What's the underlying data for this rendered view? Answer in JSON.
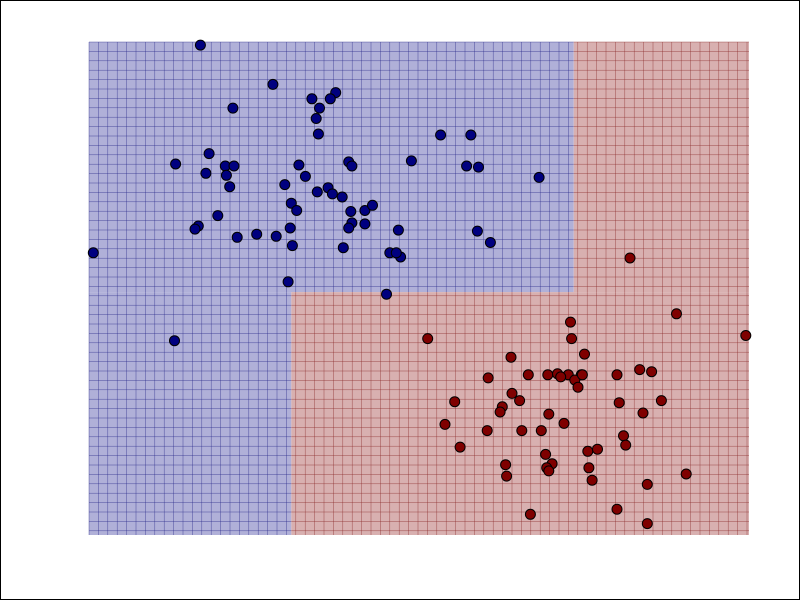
{
  "chart_data": {
    "type": "scatter",
    "xlim": [
      -3.1,
      3.0
    ],
    "ylim": [
      -2.85,
      1.92
    ],
    "grid": true,
    "axes_visible": false,
    "regions": [
      {
        "class": 0,
        "color": "#b0b0d8",
        "grid_color": "#2a2a8a",
        "x": [
          -3.1,
          1.38
        ],
        "y": [
          -0.5,
          1.92
        ]
      },
      {
        "class": 0,
        "color": "#b0b0d8",
        "grid_color": "#2a2a8a",
        "x": [
          -3.1,
          -1.23
        ],
        "y": [
          -2.85,
          -0.5
        ]
      },
      {
        "class": 1,
        "color": "#d8b0b0",
        "grid_color": "#8a2a2a",
        "x": [
          1.38,
          3.0
        ],
        "y": [
          -0.5,
          1.92
        ]
      },
      {
        "class": 1,
        "color": "#d8b0b0",
        "grid_color": "#8a2a2a",
        "x": [
          -1.23,
          3.0
        ],
        "y": [
          -2.85,
          -0.5
        ]
      }
    ],
    "series": [
      {
        "class": 0,
        "color": "#00007f",
        "points": [
          [
            -2.07,
            1.89
          ],
          [
            -1.4,
            1.51
          ],
          [
            -0.97,
            1.28
          ],
          [
            -1.77,
            1.28
          ],
          [
            -0.82,
            1.43
          ],
          [
            -0.87,
            1.37
          ],
          [
            -1.04,
            1.37
          ],
          [
            -1.0,
            1.18
          ],
          [
            -0.98,
            1.03
          ],
          [
            0.15,
            1.02
          ],
          [
            0.43,
            1.02
          ],
          [
            -1.99,
            0.84
          ],
          [
            -2.3,
            0.74
          ],
          [
            -2.02,
            0.65
          ],
          [
            -1.84,
            0.72
          ],
          [
            -1.76,
            0.72
          ],
          [
            -1.83,
            0.63
          ],
          [
            -1.8,
            0.52
          ],
          [
            -1.16,
            0.73
          ],
          [
            -0.7,
            0.76
          ],
          [
            -0.67,
            0.72
          ],
          [
            -0.12,
            0.77
          ],
          [
            0.39,
            0.72
          ],
          [
            0.5,
            0.71
          ],
          [
            -1.29,
            0.54
          ],
          [
            -1.1,
            0.62
          ],
          [
            -1.23,
            0.36
          ],
          [
            -1.18,
            0.29
          ],
          [
            -0.99,
            0.47
          ],
          [
            -0.89,
            0.51
          ],
          [
            -0.85,
            0.45
          ],
          [
            -0.76,
            0.42
          ],
          [
            -0.68,
            0.28
          ],
          [
            -0.67,
            0.17
          ],
          [
            -0.7,
            0.12
          ],
          [
            -0.55,
            0.29
          ],
          [
            -0.55,
            0.16
          ],
          [
            -1.91,
            0.24
          ],
          [
            -2.09,
            0.14
          ],
          [
            -2.12,
            0.11
          ],
          [
            -1.73,
            0.03
          ],
          [
            -1.55,
            0.06
          ],
          [
            -1.24,
            0.12
          ],
          [
            -1.37,
            0.04
          ],
          [
            -1.22,
            -0.05
          ],
          [
            -0.75,
            -0.07
          ],
          [
            -0.24,
            0.1
          ],
          [
            0.49,
            0.09
          ],
          [
            0.61,
            -0.02
          ],
          [
            -0.22,
            -0.16
          ],
          [
            -0.32,
            -0.12
          ],
          [
            1.06,
            0.61
          ],
          [
            -3.06,
            -0.12
          ],
          [
            -1.26,
            -0.4
          ],
          [
            -0.48,
            0.34
          ],
          [
            -0.26,
            -0.12
          ],
          [
            -0.35,
            -0.52
          ],
          [
            -2.31,
            -0.97
          ]
        ]
      },
      {
        "class": 1,
        "color": "#7f0000",
        "points": [
          [
            1.9,
            -0.17
          ],
          [
            2.33,
            -0.71
          ],
          [
            2.97,
            -0.92
          ],
          [
            1.35,
            -0.79
          ],
          [
            1.36,
            -0.95
          ],
          [
            1.48,
            -1.1
          ],
          [
            0.03,
            -0.95
          ],
          [
            0.8,
            -1.13
          ],
          [
            0.96,
            -1.3
          ],
          [
            1.14,
            -1.3
          ],
          [
            1.23,
            -1.29
          ],
          [
            1.33,
            -1.3
          ],
          [
            1.45,
            -1.3
          ],
          [
            1.26,
            -1.32
          ],
          [
            1.39,
            -1.35
          ],
          [
            1.46,
            -1.3
          ],
          [
            1.78,
            -1.3
          ],
          [
            1.99,
            -1.25
          ],
          [
            2.1,
            -1.27
          ],
          [
            1.42,
            -1.42
          ],
          [
            0.59,
            -1.33
          ],
          [
            0.81,
            -1.48
          ],
          [
            0.28,
            -1.56
          ],
          [
            0.72,
            -1.61
          ],
          [
            0.88,
            -1.55
          ],
          [
            0.7,
            -1.66
          ],
          [
            1.15,
            -1.68
          ],
          [
            1.8,
            -1.57
          ],
          [
            2.19,
            -1.55
          ],
          [
            2.02,
            -1.67
          ],
          [
            1.29,
            -1.77
          ],
          [
            0.19,
            -1.78
          ],
          [
            0.58,
            -1.84
          ],
          [
            0.9,
            -1.84
          ],
          [
            1.08,
            -1.84
          ],
          [
            0.33,
            -2.0
          ],
          [
            1.12,
            -2.07
          ],
          [
            1.51,
            -2.04
          ],
          [
            1.6,
            -2.02
          ],
          [
            1.84,
            -1.89
          ],
          [
            1.86,
            -1.98
          ],
          [
            0.75,
            -2.17
          ],
          [
            0.76,
            -2.28
          ],
          [
            1.18,
            -2.16
          ],
          [
            1.13,
            -2.2
          ],
          [
            1.15,
            -2.23
          ],
          [
            1.52,
            -2.2
          ],
          [
            1.55,
            -2.32
          ],
          [
            2.06,
            -2.36
          ],
          [
            2.42,
            -2.26
          ],
          [
            1.78,
            -2.6
          ],
          [
            0.98,
            -2.65
          ],
          [
            2.06,
            -2.74
          ]
        ]
      }
    ]
  }
}
